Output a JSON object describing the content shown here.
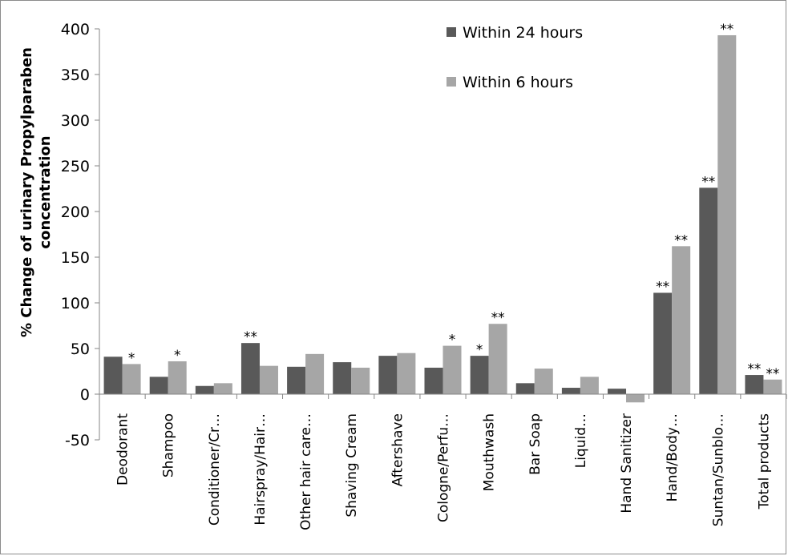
{
  "chart_data": {
    "type": "bar",
    "ylabel_lines": [
      "% Change of urinary Propylparaben",
      "concentration"
    ],
    "xlabel": "",
    "ylim": [
      -50,
      400
    ],
    "ytick_step": 50,
    "grid": false,
    "legend_position": "top-right",
    "categories": [
      "Deodorant",
      "Shampoo",
      "Conditioner/Cr…",
      "Hairspray/Hair…",
      "Other hair care…",
      "Shaving Cream",
      "Aftershave",
      "Cologne/Perfu…",
      "Mouthwash",
      "Bar Soap",
      "Liquid…",
      "Hand Sanitizer",
      "Hand/Body…",
      "Suntan/Sunblo…",
      "Total products"
    ],
    "series": [
      {
        "name": "Within 24 hours",
        "color": "#595959",
        "values": [
          41,
          19,
          9,
          56,
          30,
          35,
          42,
          29,
          42,
          12,
          7,
          6,
          111,
          226,
          21
        ],
        "significance": [
          "",
          "",
          "",
          "**",
          "",
          "",
          "",
          "",
          "*",
          "",
          "",
          "",
          "**",
          "**",
          "**"
        ]
      },
      {
        "name": "Within 6 hours",
        "color": "#a6a6a6",
        "values": [
          33,
          36,
          12,
          31,
          44,
          29,
          45,
          53,
          77,
          28,
          19,
          -9,
          162,
          393,
          16
        ],
        "significance": [
          "*",
          "*",
          "",
          "",
          "",
          "",
          "",
          "*",
          "**",
          "",
          "",
          "",
          "**",
          "**",
          "**"
        ]
      }
    ]
  }
}
